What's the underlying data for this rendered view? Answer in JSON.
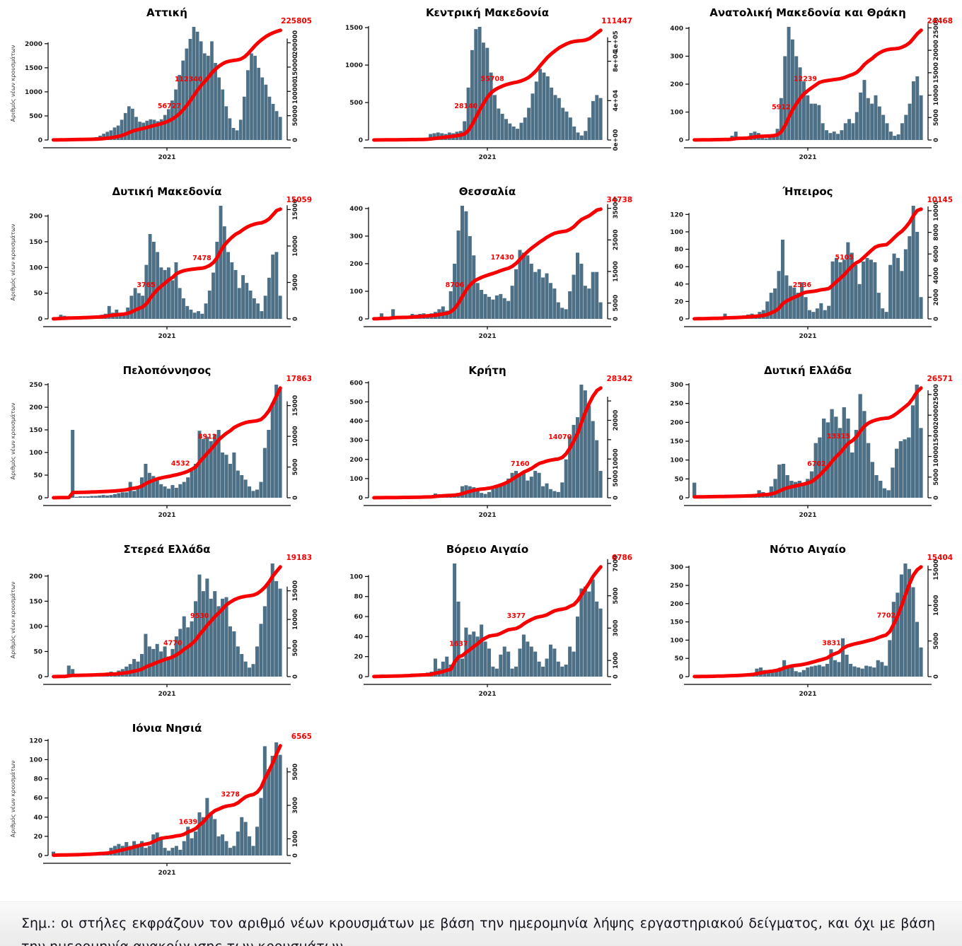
{
  "note_text": "Σημ.:  οι στήλες εκφράζουν τον αριθμό νέων κρουσμάτων με βάση την ημερομηνία λήψης εργαστηριακού δείγματος, και όχι με βάση την ημερομηνία ανακοίνωσης των κρουσμάτων.",
  "axis": {
    "ylabel": "Αριθμός νέων κρουσμάτων",
    "xlabel": "2021"
  },
  "colors": {
    "bar": "#4d7086",
    "line": "#f80000",
    "annotation": "#f80000",
    "tick_text": "#1c1c1c",
    "axis_line": "#000000"
  },
  "chart_data": [
    {
      "type": "bar+line",
      "title": "Αττική",
      "total": 225805,
      "milestones": [
        56727,
        112340
      ],
      "left_ticks": [
        0,
        500,
        1000,
        1500,
        2000
      ],
      "right_ticks": {
        "values": [
          0,
          50000,
          100000,
          150000,
          200000
        ],
        "labels": [
          "0",
          "50000",
          "100000",
          "150000",
          "200000"
        ]
      },
      "bars": [
        20,
        25,
        30,
        28,
        32,
        30,
        28,
        30,
        32,
        35,
        30,
        28,
        60,
        90,
        130,
        170,
        200,
        260,
        300,
        420,
        560,
        700,
        650,
        480,
        380,
        360,
        400,
        430,
        420,
        390,
        430,
        520,
        640,
        820,
        1050,
        1350,
        1650,
        1900,
        2100,
        2350,
        2250,
        2050,
        1800,
        1750,
        2050,
        1600,
        1300,
        1050,
        700,
        450,
        250,
        200,
        420,
        900,
        1450,
        1800,
        1750,
        1500,
        1300,
        1150,
        900,
        750,
        600,
        480
      ]
    },
    {
      "type": "bar+line",
      "title": "Κεντρική Μακεδονία",
      "total": 111447,
      "milestones": [
        28140,
        55708
      ],
      "left_ticks": [
        0,
        500,
        1000,
        1500
      ],
      "right_ticks": {
        "values": [
          0,
          40000,
          80000,
          100000
        ],
        "labels": [
          "0e+00",
          "4e+04",
          "8e+04",
          "1e+05"
        ]
      },
      "bars": [
        5,
        5,
        8,
        6,
        7,
        8,
        6,
        8,
        10,
        9,
        8,
        10,
        12,
        15,
        20,
        80,
        90,
        100,
        90,
        80,
        100,
        90,
        110,
        120,
        250,
        700,
        1200,
        1480,
        1510,
        1300,
        1230,
        900,
        600,
        420,
        350,
        280,
        220,
        180,
        150,
        230,
        300,
        430,
        620,
        780,
        950,
        900,
        850,
        700,
        600,
        560,
        430,
        380,
        300,
        180,
        100,
        60,
        120,
        300,
        520,
        600,
        560
      ]
    },
    {
      "type": "bar+line",
      "title": "Ανατολική Μακεδονία και Θράκη",
      "total": 24468,
      "milestones": [
        5912,
        12239
      ],
      "left_ticks": [
        0,
        100,
        200,
        300,
        400
      ],
      "right_ticks": {
        "values": [
          0,
          5000,
          10000,
          15000,
          20000,
          25000
        ],
        "labels": [
          "0",
          "5000",
          "10000",
          "15000",
          "20000",
          "25000"
        ]
      },
      "bars": [
        2,
        2,
        3,
        2,
        3,
        3,
        2,
        3,
        4,
        3,
        15,
        30,
        10,
        5,
        8,
        25,
        30,
        25,
        8,
        6,
        10,
        15,
        40,
        150,
        300,
        405,
        360,
        300,
        260,
        210,
        160,
        130,
        130,
        125,
        60,
        35,
        25,
        30,
        22,
        35,
        60,
        75,
        60,
        100,
        170,
        215,
        150,
        130,
        160,
        120,
        90,
        60,
        30,
        15,
        20,
        60,
        90,
        130,
        210,
        228,
        160
      ]
    },
    {
      "type": "bar+line",
      "title": "Δυτική Μακεδονία",
      "total": 15059,
      "milestones": [
        3765,
        7478
      ],
      "left_ticks": [
        0,
        50,
        100,
        150,
        200
      ],
      "right_ticks": {
        "values": [
          0,
          5000,
          10000,
          15000
        ],
        "labels": [
          "0",
          "5000",
          "10000",
          "15000"
        ]
      },
      "bars": [
        2,
        3,
        8,
        6,
        5,
        4,
        3,
        3,
        4,
        4,
        5,
        6,
        5,
        8,
        10,
        25,
        12,
        18,
        8,
        10,
        22,
        45,
        60,
        50,
        45,
        105,
        165,
        150,
        130,
        100,
        95,
        100,
        75,
        110,
        60,
        40,
        25,
        18,
        12,
        15,
        10,
        30,
        55,
        90,
        150,
        220,
        180,
        130,
        110,
        95,
        60,
        85,
        70,
        55,
        40,
        30,
        15,
        45,
        80,
        125,
        130,
        45
      ]
    },
    {
      "type": "bar+line",
      "title": "Θεσσαλία",
      "total": 34738,
      "milestones": [
        8706,
        17430
      ],
      "left_ticks": [
        0,
        100,
        200,
        300,
        400
      ],
      "right_ticks": {
        "values": [
          0,
          5000,
          15000,
          25000,
          35000
        ],
        "labels": [
          "0",
          "5000",
          "15000",
          "25000",
          "35000"
        ]
      },
      "bars": [
        3,
        4,
        20,
        3,
        5,
        35,
        10,
        4,
        5,
        5,
        18,
        15,
        18,
        20,
        15,
        20,
        25,
        35,
        45,
        30,
        100,
        200,
        320,
        410,
        390,
        300,
        230,
        130,
        105,
        90,
        80,
        70,
        85,
        90,
        75,
        65,
        120,
        180,
        250,
        240,
        230,
        200,
        170,
        180,
        150,
        165,
        130,
        110,
        60,
        40,
        35,
        100,
        160,
        240,
        200,
        120,
        110,
        170,
        170,
        60
      ]
    },
    {
      "type": "bar+line",
      "title": "Ήπειρος",
      "total": 10145,
      "milestones": [
        2536,
        5105
      ],
      "left_ticks": [
        0,
        20,
        40,
        60,
        80,
        100,
        120
      ],
      "right_ticks": {
        "values": [
          0,
          2000,
          4000,
          6000,
          8000,
          10000
        ],
        "labels": [
          "0",
          "2000",
          "4000",
          "6000",
          "8000",
          "10000"
        ]
      },
      "bars": [
        1,
        2,
        1,
        2,
        2,
        1,
        2,
        2,
        6,
        2,
        2,
        3,
        3,
        4,
        5,
        6,
        5,
        8,
        10,
        20,
        30,
        35,
        55,
        91,
        50,
        38,
        36,
        30,
        42,
        25,
        10,
        8,
        12,
        18,
        10,
        15,
        66,
        70,
        65,
        68,
        88,
        76,
        62,
        40,
        66,
        70,
        68,
        65,
        30,
        12,
        8,
        62,
        75,
        70,
        55,
        80,
        95,
        130,
        100,
        25
      ]
    },
    {
      "type": "bar+line",
      "title": "Πελοπόννησος",
      "total": 17863,
      "milestones": [
        4532,
        8912
      ],
      "left_ticks": [
        0,
        50,
        100,
        150,
        200,
        250
      ],
      "right_ticks": {
        "values": [
          0,
          5000,
          10000,
          15000
        ],
        "labels": [
          "0",
          "5000",
          "10000",
          "15000"
        ]
      },
      "bars": [
        1,
        2,
        2,
        2,
        2,
        150,
        2,
        3,
        3,
        3,
        4,
        4,
        5,
        6,
        5,
        6,
        8,
        10,
        12,
        12,
        35,
        15,
        20,
        45,
        75,
        55,
        48,
        40,
        30,
        25,
        20,
        28,
        22,
        30,
        35,
        45,
        60,
        75,
        148,
        130,
        135,
        125,
        140,
        150,
        100,
        95,
        75,
        100,
        60,
        50,
        40,
        25,
        15,
        18,
        35,
        110,
        150,
        210,
        250,
        240
      ]
    },
    {
      "type": "bar+line",
      "title": "Κρήτη",
      "total": 28342,
      "milestones": [
        7160,
        14070
      ],
      "left_ticks": [
        0,
        100,
        200,
        300,
        400,
        500,
        600
      ],
      "right_ticks": {
        "values": [
          0,
          5000,
          10000,
          15000,
          20000,
          25000
        ],
        "labels": [
          "0",
          "5000",
          "10000",
          "",
          "20000",
          ""
        ]
      },
      "bars": [
        1,
        1,
        2,
        2,
        2,
        2,
        2,
        3,
        3,
        3,
        3,
        4,
        4,
        5,
        6,
        8,
        22,
        18,
        15,
        12,
        10,
        15,
        25,
        60,
        65,
        60,
        55,
        40,
        25,
        20,
        30,
        45,
        60,
        70,
        80,
        100,
        130,
        140,
        120,
        135,
        90,
        110,
        140,
        130,
        60,
        75,
        45,
        35,
        30,
        80,
        200,
        320,
        380,
        420,
        590,
        560,
        480,
        400,
        300,
        140
      ]
    },
    {
      "type": "bar+line",
      "title": "Δυτική Ελλάδα",
      "total": 26571,
      "milestones": [
        6702,
        13315
      ],
      "left_ticks": [
        0,
        50,
        100,
        150,
        200,
        250,
        300
      ],
      "right_ticks": {
        "values": [
          0,
          5000,
          10000,
          15000,
          20000,
          25000
        ],
        "labels": [
          "0",
          "5000",
          "10000",
          "15000",
          "20000",
          "25000"
        ]
      },
      "bars": [
        40,
        2,
        2,
        2,
        3,
        3,
        3,
        3,
        4,
        4,
        4,
        5,
        5,
        8,
        6,
        10,
        20,
        15,
        12,
        30,
        50,
        88,
        90,
        60,
        45,
        42,
        45,
        40,
        50,
        70,
        145,
        160,
        210,
        200,
        235,
        215,
        185,
        240,
        210,
        120,
        180,
        275,
        230,
        145,
        95,
        60,
        45,
        25,
        20,
        80,
        130,
        150,
        155,
        160,
        245,
        300,
        185
      ]
    },
    {
      "type": "bar+line",
      "title": "Στερεά Ελλάδα",
      "total": 19183,
      "milestones": [
        4770,
        9530
      ],
      "left_ticks": [
        0,
        50,
        100,
        150,
        200
      ],
      "right_ticks": {
        "values": [
          0,
          5000,
          10000,
          15000
        ],
        "labels": [
          "0",
          "5000",
          "10000",
          "15000"
        ]
      },
      "bars": [
        1,
        2,
        2,
        3,
        22,
        15,
        3,
        3,
        3,
        4,
        4,
        5,
        5,
        6,
        8,
        10,
        8,
        12,
        15,
        20,
        25,
        35,
        30,
        45,
        85,
        60,
        55,
        65,
        50,
        60,
        40,
        55,
        80,
        95,
        120,
        98,
        110,
        150,
        203,
        170,
        195,
        155,
        170,
        140,
        155,
        158,
        100,
        90,
        60,
        45,
        30,
        18,
        25,
        60,
        105,
        140,
        185,
        225,
        190,
        175
      ]
    },
    {
      "type": "bar+line",
      "title": "Βόρειο Αιγαίο",
      "total": 6786,
      "milestones": [
        1637,
        3377
      ],
      "left_ticks": [
        0,
        20,
        40,
        60,
        80,
        100
      ],
      "right_ticks": {
        "values": [
          0,
          1000,
          3000,
          5000,
          7000
        ],
        "labels": [
          "0",
          "1000",
          "3000",
          "5000",
          "7000"
        ]
      },
      "bars": [
        1,
        1,
        2,
        1,
        1,
        2,
        1,
        2,
        2,
        2,
        3,
        3,
        2,
        3,
        4,
        5,
        18,
        8,
        15,
        20,
        12,
        113,
        75,
        18,
        49,
        42,
        45,
        40,
        52,
        35,
        28,
        10,
        8,
        22,
        30,
        25,
        8,
        10,
        28,
        42,
        35,
        30,
        25,
        15,
        10,
        18,
        32,
        28,
        15,
        10,
        12,
        30,
        25,
        60,
        88,
        90,
        85,
        97,
        75,
        68
      ]
    },
    {
      "type": "bar+line",
      "title": "Νότιο Αιγαίο",
      "total": 15404,
      "milestones": [
        3831,
        7702
      ],
      "left_ticks": [
        0,
        50,
        100,
        150,
        200,
        250,
        300
      ],
      "right_ticks": {
        "values": [
          0,
          5000,
          10000,
          15000
        ],
        "labels": [
          "0",
          "5000",
          "10000",
          "15000"
        ]
      },
      "bars": [
        1,
        1,
        2,
        2,
        2,
        2,
        3,
        3,
        3,
        4,
        4,
        5,
        5,
        6,
        8,
        10,
        22,
        25,
        18,
        15,
        12,
        20,
        25,
        45,
        30,
        25,
        15,
        12,
        18,
        25,
        28,
        30,
        32,
        28,
        35,
        75,
        45,
        40,
        105,
        60,
        35,
        28,
        25,
        22,
        30,
        28,
        25,
        45,
        40,
        30,
        100,
        205,
        230,
        280,
        310,
        295,
        245,
        150,
        80
      ]
    },
    {
      "type": "bar+line",
      "title": "Ιόνια Νησιά",
      "total": 6565,
      "milestones": [
        1639,
        3278
      ],
      "left_ticks": [
        0,
        20,
        40,
        60,
        80,
        100,
        120
      ],
      "right_ticks": {
        "values": [
          0,
          1000,
          3000,
          5000
        ],
        "labels": [
          "0",
          "1000",
          "3000",
          "5000"
        ]
      },
      "bars": [
        4,
        1,
        1,
        1,
        1,
        1,
        1,
        2,
        2,
        2,
        2,
        3,
        3,
        3,
        4,
        8,
        10,
        12,
        10,
        14,
        10,
        15,
        12,
        15,
        8,
        10,
        22,
        24,
        18,
        8,
        5,
        8,
        10,
        6,
        15,
        30,
        18,
        25,
        45,
        40,
        60,
        45,
        38,
        20,
        22,
        15,
        8,
        10,
        25,
        40,
        35,
        20,
        10,
        30,
        60,
        114,
        90,
        104,
        118,
        105
      ]
    }
  ]
}
